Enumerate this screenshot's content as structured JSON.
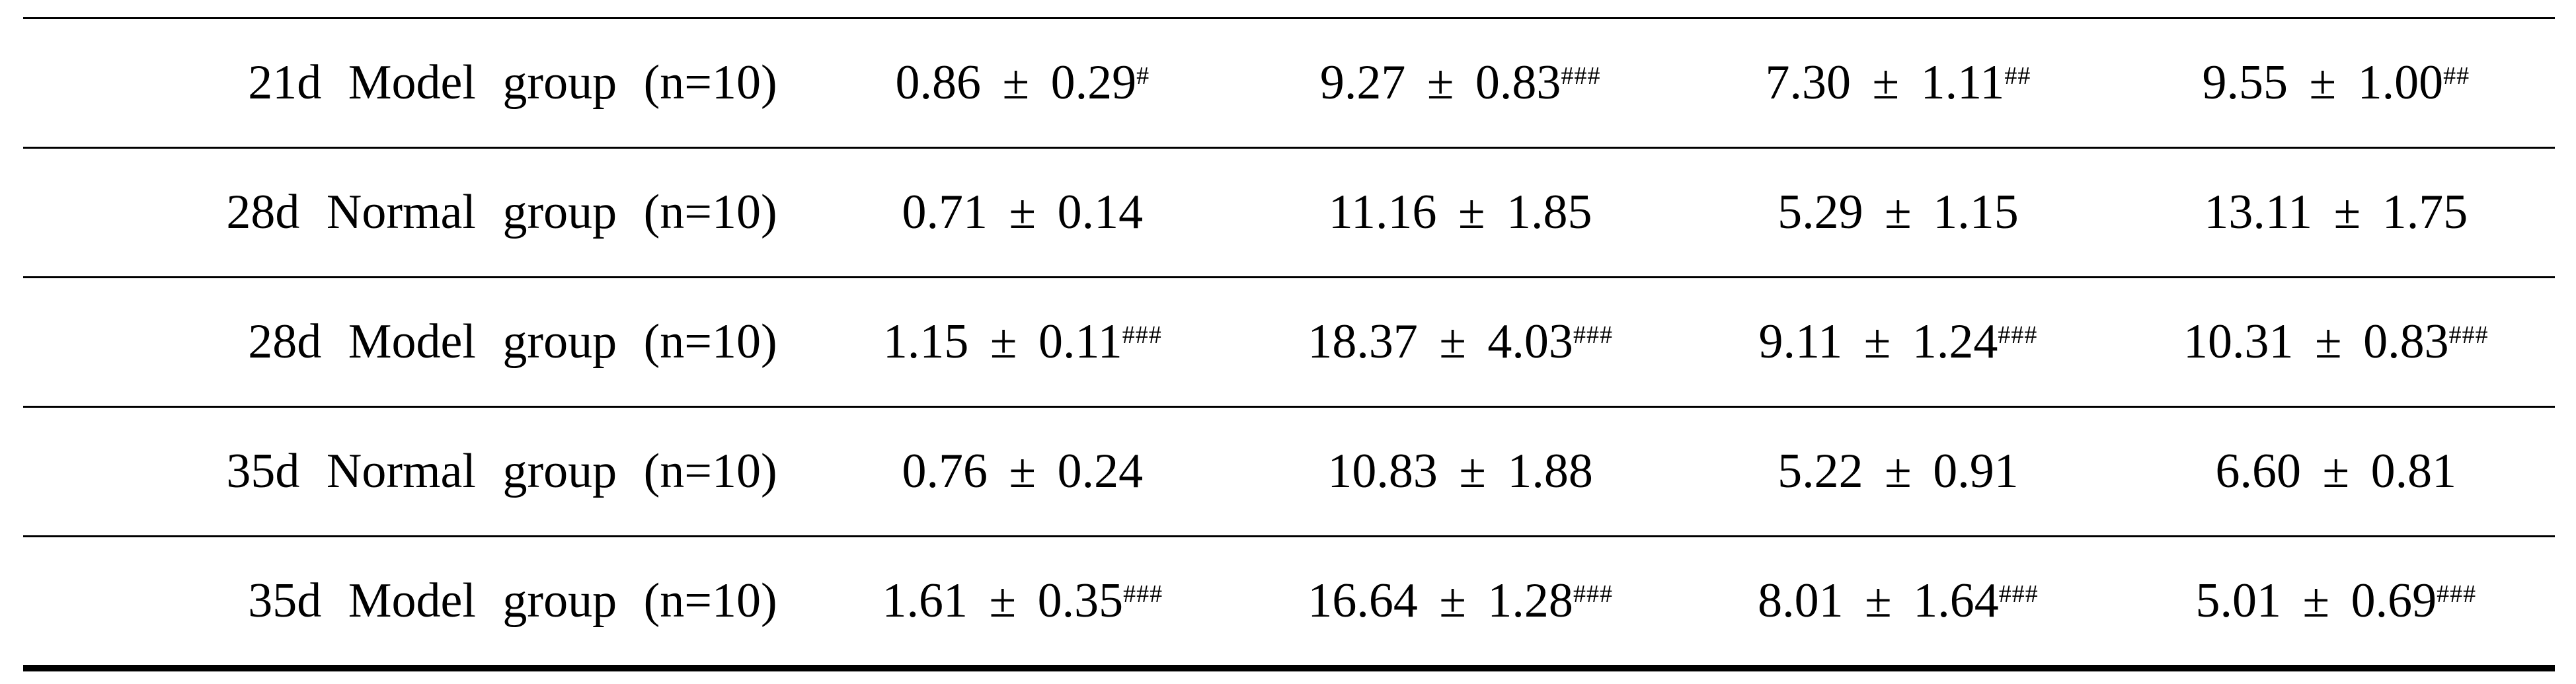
{
  "rows": [
    {
      "group": "21d Model group (n=10)",
      "cells": [
        {
          "value": "0.86 ± 0.29",
          "sig": "#"
        },
        {
          "value": "9.27 ± 0.83",
          "sig": "###"
        },
        {
          "value": "7.30 ± 1.11",
          "sig": "##"
        },
        {
          "value": "9.55 ± 1.00",
          "sig": "##"
        }
      ]
    },
    {
      "group": "28d Normal group (n=10)",
      "cells": [
        {
          "value": "0.71 ± 0.14",
          "sig": ""
        },
        {
          "value": "11.16 ± 1.85",
          "sig": ""
        },
        {
          "value": "5.29 ± 1.15",
          "sig": ""
        },
        {
          "value": "13.11 ± 1.75",
          "sig": ""
        }
      ]
    },
    {
      "group": "28d Model group (n=10)",
      "cells": [
        {
          "value": "1.15 ± 0.11",
          "sig": "###"
        },
        {
          "value": "18.37 ± 4.03",
          "sig": "###"
        },
        {
          "value": "9.11 ± 1.24",
          "sig": "###"
        },
        {
          "value": "10.31 ± 0.83",
          "sig": "###"
        }
      ]
    },
    {
      "group": "35d Normal group (n=10)",
      "cells": [
        {
          "value": "0.76 ± 0.24",
          "sig": ""
        },
        {
          "value": "10.83 ± 1.88",
          "sig": ""
        },
        {
          "value": "5.22 ± 0.91",
          "sig": ""
        },
        {
          "value": "6.60 ± 0.81",
          "sig": ""
        }
      ]
    },
    {
      "group": "35d Model group (n=10)",
      "cells": [
        {
          "value": "1.61 ± 0.35",
          "sig": "###"
        },
        {
          "value": "16.64 ± 1.28",
          "sig": "###"
        },
        {
          "value": "8.01 ± 1.64",
          "sig": "###"
        },
        {
          "value": "5.01 ± 0.69",
          "sig": "###"
        }
      ]
    }
  ]
}
